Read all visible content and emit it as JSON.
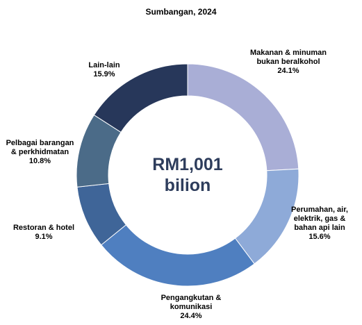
{
  "chart_data": {
    "type": "donut",
    "title": "Sumbangan, 2024",
    "center_label": "RM1,001 bilion",
    "categories": [
      "Makanan & minuman bukan beralkohol",
      "Perumahan, air, elektrik, gas & bahan api lain",
      "Pengangkutan & komunikasi",
      "Restoran & hotel",
      "Pelbagai barangan & perkhidmatan",
      "Lain-lain"
    ],
    "values": [
      24.1,
      15.6,
      24.4,
      9.1,
      10.8,
      15.9
    ],
    "value_labels": [
      "24.1%",
      "15.6%",
      "24.4%",
      "9.1%",
      "10.8%",
      "15.9%"
    ],
    "colors": [
      "#a9aed6",
      "#8eaad8",
      "#4f7fc0",
      "#3f6598",
      "#4b6b88",
      "#27375a"
    ]
  }
}
